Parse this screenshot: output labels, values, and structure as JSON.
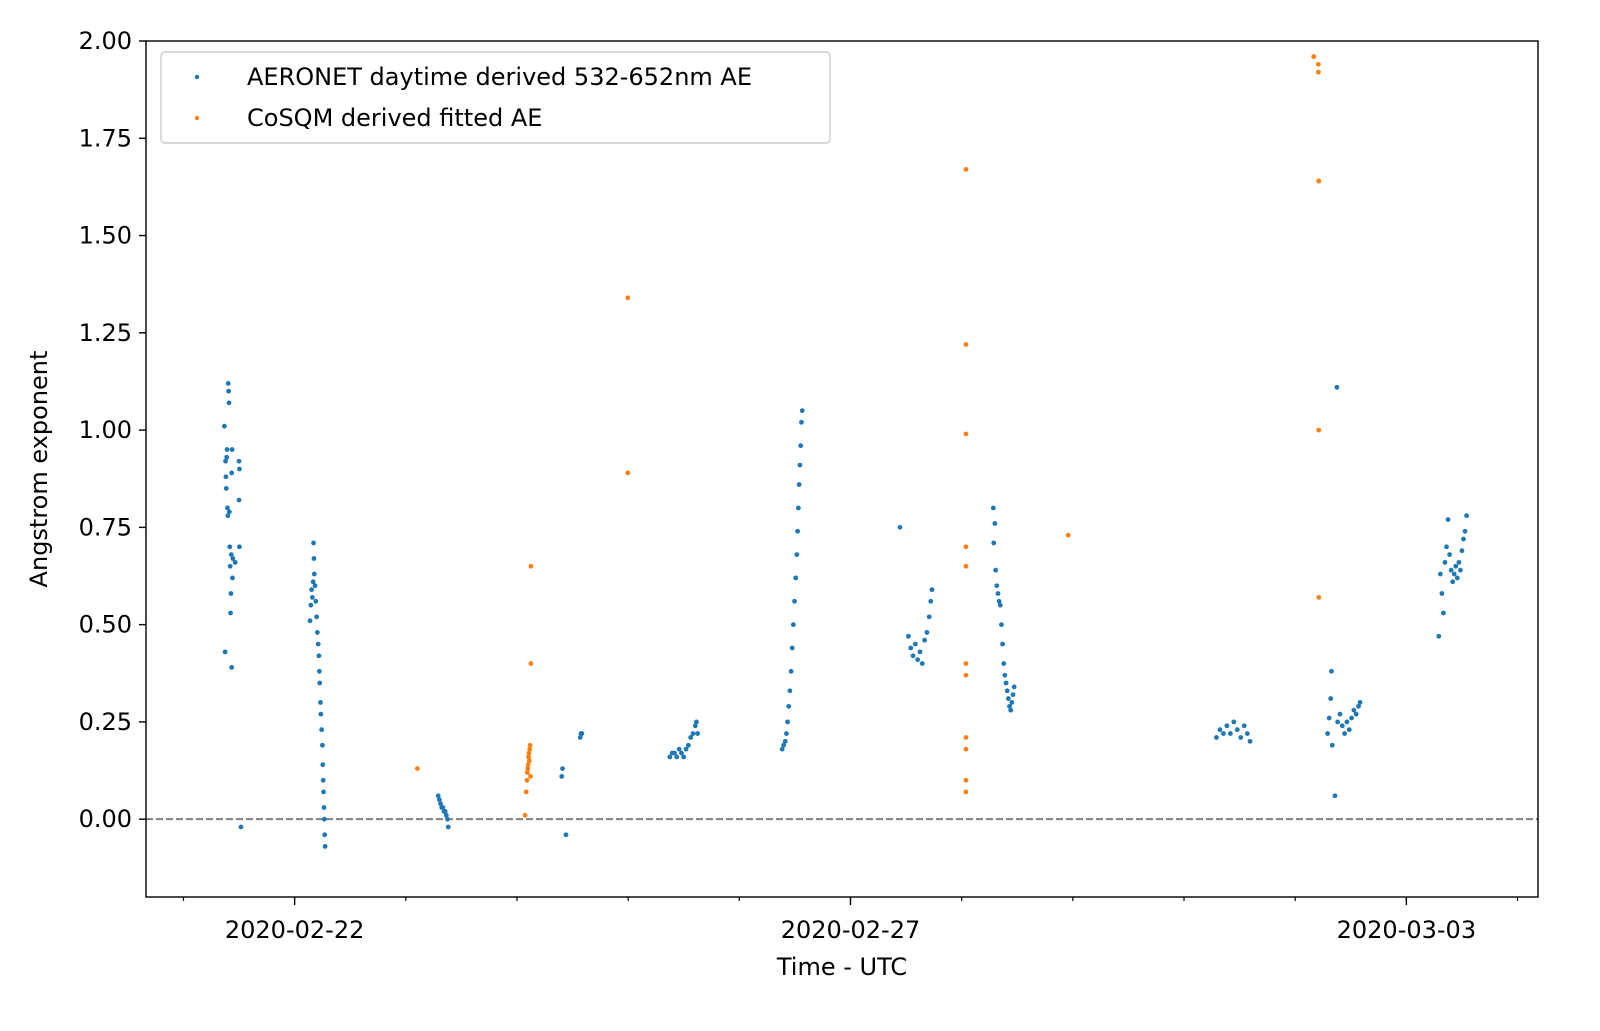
{
  "chart_data": {
    "type": "scatter",
    "xlabel": "Time - UTC",
    "ylabel": "Angstrom exponent",
    "x_axis": {
      "type": "date",
      "range": [
        "2020-02-20T15:55",
        "2020-03-04T04:25"
      ],
      "ticks": [
        "2020-02-22",
        "2020-02-27",
        "2020-03-03"
      ],
      "minor_tick_step_days": 1
    },
    "y_axis": {
      "range": [
        -0.2,
        2.0
      ],
      "ticks": [
        "0.00",
        "0.25",
        "0.50",
        "0.75",
        "1.00",
        "1.25",
        "1.50",
        "1.75",
        "2.00"
      ]
    },
    "reference_line": {
      "y": 0,
      "style": "dashed",
      "color": "#808080"
    },
    "legend": {
      "position": "top-left"
    },
    "grid": false,
    "series": [
      {
        "name": "AERONET daytime derived 532-652nm AE",
        "color": "#1f77b4",
        "points": [
          [
            "2020-02-21T08:50",
            1.01
          ],
          [
            "2020-02-21T09:05",
            0.92
          ],
          [
            "2020-02-21T09:10",
            0.88
          ],
          [
            "2020-02-21T09:15",
            0.85
          ],
          [
            "2020-02-21T09:20",
            0.93
          ],
          [
            "2020-02-21T09:25",
            0.95
          ],
          [
            "2020-02-21T09:30",
            0.8
          ],
          [
            "2020-02-21T09:35",
            0.78
          ],
          [
            "2020-02-21T09:40",
            1.12
          ],
          [
            "2020-02-21T09:45",
            1.1
          ],
          [
            "2020-02-21T09:50",
            1.07
          ],
          [
            "2020-02-21T09:55",
            0.79
          ],
          [
            "2020-02-21T10:00",
            0.7
          ],
          [
            "2020-02-21T10:05",
            0.65
          ],
          [
            "2020-02-21T10:10",
            0.53
          ],
          [
            "2020-02-21T10:15",
            0.58
          ],
          [
            "2020-02-21T10:20",
            0.68
          ],
          [
            "2020-02-21T10:25",
            0.89
          ],
          [
            "2020-02-21T10:30",
            0.95
          ],
          [
            "2020-02-21T10:35",
            0.62
          ],
          [
            "2020-02-21T10:40",
            0.67
          ],
          [
            "2020-02-21T09:00",
            0.43
          ],
          [
            "2020-02-21T10:25",
            0.39
          ],
          [
            "2020-02-21T11:10",
            0.66
          ],
          [
            "2020-02-21T12:00",
            0.92
          ],
          [
            "2020-02-21T12:05",
            0.9
          ],
          [
            "2020-02-21T12:00",
            0.82
          ],
          [
            "2020-02-21T12:05",
            0.7
          ],
          [
            "2020-02-21T12:25",
            -0.02
          ],
          [
            "2020-02-22T03:20",
            0.51
          ],
          [
            "2020-02-22T03:30",
            0.55
          ],
          [
            "2020-02-22T03:40",
            0.59
          ],
          [
            "2020-02-22T03:50",
            0.57
          ],
          [
            "2020-02-22T04:00",
            0.61
          ],
          [
            "2020-02-22T04:05",
            0.71
          ],
          [
            "2020-02-22T04:10",
            0.67
          ],
          [
            "2020-02-22T04:15",
            0.63
          ],
          [
            "2020-02-22T04:25",
            0.6
          ],
          [
            "2020-02-22T04:35",
            0.56
          ],
          [
            "2020-02-22T04:45",
            0.52
          ],
          [
            "2020-02-22T04:55",
            0.48
          ],
          [
            "2020-02-22T05:05",
            0.45
          ],
          [
            "2020-02-22T05:15",
            0.42
          ],
          [
            "2020-02-22T05:20",
            0.38
          ],
          [
            "2020-02-22T05:25",
            0.35
          ],
          [
            "2020-02-22T05:35",
            0.3
          ],
          [
            "2020-02-22T05:40",
            0.27
          ],
          [
            "2020-02-22T05:50",
            0.23
          ],
          [
            "2020-02-22T06:00",
            0.19
          ],
          [
            "2020-02-22T06:05",
            0.14
          ],
          [
            "2020-02-22T06:10",
            0.1
          ],
          [
            "2020-02-22T06:15",
            0.07
          ],
          [
            "2020-02-22T06:20",
            0.03
          ],
          [
            "2020-02-22T06:25",
            0.0
          ],
          [
            "2020-02-22T06:30",
            -0.04
          ],
          [
            "2020-02-22T06:35",
            -0.07
          ],
          [
            "2020-02-23T07:00",
            0.06
          ],
          [
            "2020-02-23T07:15",
            0.05
          ],
          [
            "2020-02-23T07:30",
            0.04
          ],
          [
            "2020-02-23T07:45",
            0.03
          ],
          [
            "2020-02-23T08:00",
            0.03
          ],
          [
            "2020-02-23T08:15",
            0.02
          ],
          [
            "2020-02-23T08:30",
            0.02
          ],
          [
            "2020-02-23T08:45",
            0.01
          ],
          [
            "2020-02-23T09:00",
            0.0
          ],
          [
            "2020-02-23T09:10",
            -0.02
          ],
          [
            "2020-02-24T09:50",
            0.13
          ],
          [
            "2020-02-24T09:40",
            0.11
          ],
          [
            "2020-02-24T10:35",
            -0.04
          ],
          [
            "2020-02-24T13:40",
            0.21
          ],
          [
            "2020-02-24T13:50",
            0.22
          ],
          [
            "2020-02-24T14:00",
            0.22
          ],
          [
            "2020-02-25T09:00",
            0.16
          ],
          [
            "2020-02-25T09:30",
            0.17
          ],
          [
            "2020-02-25T10:00",
            0.17
          ],
          [
            "2020-02-25T10:30",
            0.16
          ],
          [
            "2020-02-25T11:00",
            0.18
          ],
          [
            "2020-02-25T11:30",
            0.17
          ],
          [
            "2020-02-25T12:00",
            0.16
          ],
          [
            "2020-02-25T12:30",
            0.18
          ],
          [
            "2020-02-25T13:00",
            0.19
          ],
          [
            "2020-02-25T13:30",
            0.21
          ],
          [
            "2020-02-25T14:00",
            0.22
          ],
          [
            "2020-02-25T14:30",
            0.24
          ],
          [
            "2020-02-25T14:45",
            0.25
          ],
          [
            "2020-02-25T15:00",
            0.22
          ],
          [
            "2020-02-26T09:15",
            0.18
          ],
          [
            "2020-02-26T09:35",
            0.19
          ],
          [
            "2020-02-26T09:55",
            0.2
          ],
          [
            "2020-02-26T10:10",
            0.22
          ],
          [
            "2020-02-26T10:25",
            0.25
          ],
          [
            "2020-02-26T10:40",
            0.29
          ],
          [
            "2020-02-26T10:55",
            0.33
          ],
          [
            "2020-02-26T11:10",
            0.38
          ],
          [
            "2020-02-26T11:25",
            0.44
          ],
          [
            "2020-02-26T11:40",
            0.5
          ],
          [
            "2020-02-26T11:55",
            0.56
          ],
          [
            "2020-02-26T12:10",
            0.62
          ],
          [
            "2020-02-26T12:25",
            0.68
          ],
          [
            "2020-02-26T12:35",
            0.74
          ],
          [
            "2020-02-26T12:45",
            0.8
          ],
          [
            "2020-02-26T12:55",
            0.86
          ],
          [
            "2020-02-26T13:05",
            0.91
          ],
          [
            "2020-02-26T13:15",
            0.96
          ],
          [
            "2020-02-26T13:25",
            1.02
          ],
          [
            "2020-02-26T13:35",
            1.05
          ],
          [
            "2020-02-27T10:40",
            0.75
          ],
          [
            "2020-02-27T12:30",
            0.47
          ],
          [
            "2020-02-27T13:00",
            0.44
          ],
          [
            "2020-02-27T13:30",
            0.42
          ],
          [
            "2020-02-27T14:00",
            0.45
          ],
          [
            "2020-02-27T14:30",
            0.41
          ],
          [
            "2020-02-27T15:00",
            0.43
          ],
          [
            "2020-02-27T15:30",
            0.4
          ],
          [
            "2020-02-27T16:00",
            0.46
          ],
          [
            "2020-02-27T16:30",
            0.48
          ],
          [
            "2020-02-27T17:00",
            0.52
          ],
          [
            "2020-02-27T17:20",
            0.56
          ],
          [
            "2020-02-27T17:35",
            0.59
          ],
          [
            "2020-02-28T06:50",
            0.8
          ],
          [
            "2020-02-28T06:55",
            0.71
          ],
          [
            "2020-02-28T07:10",
            0.76
          ],
          [
            "2020-02-28T07:20",
            0.64
          ],
          [
            "2020-02-28T07:35",
            0.6
          ],
          [
            "2020-02-28T07:50",
            0.58
          ],
          [
            "2020-02-28T08:05",
            0.56
          ],
          [
            "2020-02-28T08:20",
            0.55
          ],
          [
            "2020-02-28T08:35",
            0.5
          ],
          [
            "2020-02-28T08:50",
            0.45
          ],
          [
            "2020-02-28T09:05",
            0.4
          ],
          [
            "2020-02-28T09:20",
            0.37
          ],
          [
            "2020-02-28T09:35",
            0.35
          ],
          [
            "2020-02-28T09:50",
            0.33
          ],
          [
            "2020-02-28T10:05",
            0.31
          ],
          [
            "2020-02-28T10:20",
            0.29
          ],
          [
            "2020-02-28T10:35",
            0.28
          ],
          [
            "2020-02-28T10:50",
            0.3
          ],
          [
            "2020-02-28T11:05",
            0.32
          ],
          [
            "2020-02-28T11:20",
            0.34
          ],
          [
            "2020-03-01T07:00",
            0.21
          ],
          [
            "2020-03-01T07:45",
            0.23
          ],
          [
            "2020-03-01T08:30",
            0.22
          ],
          [
            "2020-03-01T09:15",
            0.24
          ],
          [
            "2020-03-01T10:00",
            0.22
          ],
          [
            "2020-03-01T10:45",
            0.25
          ],
          [
            "2020-03-01T11:30",
            0.23
          ],
          [
            "2020-03-01T12:15",
            0.21
          ],
          [
            "2020-03-01T13:00",
            0.24
          ],
          [
            "2020-03-01T13:40",
            0.22
          ],
          [
            "2020-03-01T14:15",
            0.2
          ],
          [
            "2020-03-02T07:00",
            0.22
          ],
          [
            "2020-03-02T07:20",
            0.26
          ],
          [
            "2020-03-02T07:40",
            0.31
          ],
          [
            "2020-03-02T07:50",
            0.38
          ],
          [
            "2020-03-02T08:00",
            0.19
          ],
          [
            "2020-03-02T08:35",
            0.06
          ],
          [
            "2020-03-02T09:00",
            1.11
          ],
          [
            "2020-03-02T09:10",
            0.25
          ],
          [
            "2020-03-02T09:40",
            0.27
          ],
          [
            "2020-03-02T10:10",
            0.24
          ],
          [
            "2020-03-02T10:40",
            0.22
          ],
          [
            "2020-03-02T11:10",
            0.25
          ],
          [
            "2020-03-02T11:40",
            0.23
          ],
          [
            "2020-03-02T12:10",
            0.26
          ],
          [
            "2020-03-02T12:40",
            0.28
          ],
          [
            "2020-03-02T13:10",
            0.27
          ],
          [
            "2020-03-02T13:40",
            0.29
          ],
          [
            "2020-03-02T14:00",
            0.3
          ],
          [
            "2020-03-03T07:00",
            0.47
          ],
          [
            "2020-03-03T07:20",
            0.63
          ],
          [
            "2020-03-03T07:40",
            0.58
          ],
          [
            "2020-03-03T08:00",
            0.53
          ],
          [
            "2020-03-03T08:20",
            0.66
          ],
          [
            "2020-03-03T08:40",
            0.7
          ],
          [
            "2020-03-03T09:00",
            0.77
          ],
          [
            "2020-03-03T09:20",
            0.68
          ],
          [
            "2020-03-03T09:40",
            0.64
          ],
          [
            "2020-03-03T10:00",
            0.61
          ],
          [
            "2020-03-03T10:20",
            0.63
          ],
          [
            "2020-03-03T10:40",
            0.65
          ],
          [
            "2020-03-03T11:00",
            0.62
          ],
          [
            "2020-03-03T11:20",
            0.66
          ],
          [
            "2020-03-03T11:40",
            0.64
          ],
          [
            "2020-03-03T12:00",
            0.69
          ],
          [
            "2020-03-03T12:20",
            0.72
          ],
          [
            "2020-03-03T12:40",
            0.74
          ],
          [
            "2020-03-03T13:00",
            0.78
          ]
        ]
      },
      {
        "name": "CoSQM derived fitted AE",
        "color": "#ff7f0e",
        "points": [
          [
            "2020-02-23T02:30",
            0.13
          ],
          [
            "2020-02-24T01:45",
            0.01
          ],
          [
            "2020-02-24T02:00",
            0.07
          ],
          [
            "2020-02-24T02:10",
            0.1
          ],
          [
            "2020-02-24T02:15",
            0.12
          ],
          [
            "2020-02-24T02:20",
            0.13
          ],
          [
            "2020-02-24T02:25",
            0.14
          ],
          [
            "2020-02-24T02:30",
            0.16
          ],
          [
            "2020-02-24T02:35",
            0.17
          ],
          [
            "2020-02-24T02:40",
            0.15
          ],
          [
            "2020-02-24T02:45",
            0.18
          ],
          [
            "2020-02-24T02:50",
            0.19
          ],
          [
            "2020-02-24T02:55",
            0.11
          ],
          [
            "2020-02-24T03:00",
            0.65
          ],
          [
            "2020-02-24T03:00",
            0.4
          ],
          [
            "2020-02-24T23:55",
            1.34
          ],
          [
            "2020-02-24T23:55",
            0.89
          ],
          [
            "2020-02-28T00:55",
            1.67
          ],
          [
            "2020-02-28T00:55",
            1.22
          ],
          [
            "2020-02-28T00:55",
            0.99
          ],
          [
            "2020-02-28T00:55",
            0.7
          ],
          [
            "2020-02-28T00:55",
            0.65
          ],
          [
            "2020-02-28T00:55",
            0.4
          ],
          [
            "2020-02-28T00:55",
            0.37
          ],
          [
            "2020-02-28T00:55",
            0.21
          ],
          [
            "2020-02-28T00:55",
            0.18
          ],
          [
            "2020-02-28T00:55",
            0.1
          ],
          [
            "2020-02-28T00:55",
            0.07
          ],
          [
            "2020-02-28T23:00",
            0.73
          ],
          [
            "2020-03-02T04:00",
            1.96
          ],
          [
            "2020-03-02T05:00",
            1.94
          ],
          [
            "2020-03-02T05:00",
            1.92
          ],
          [
            "2020-03-02T05:05",
            1.64
          ],
          [
            "2020-03-02T05:05",
            1.64
          ],
          [
            "2020-03-02T05:05",
            1.0
          ],
          [
            "2020-03-02T05:05",
            0.57
          ]
        ]
      }
    ]
  }
}
